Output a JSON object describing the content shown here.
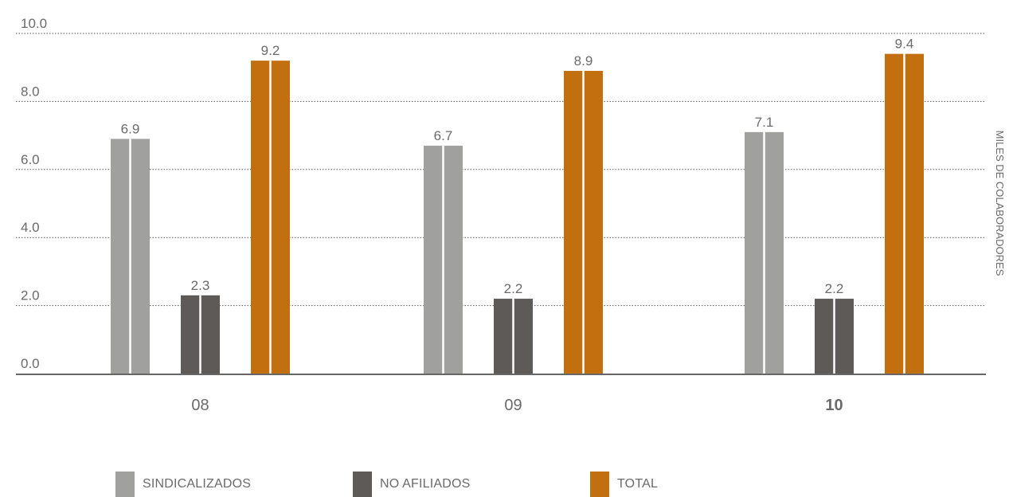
{
  "chart_data": {
    "type": "bar",
    "categories": [
      "08",
      "09",
      "10"
    ],
    "highlight_category": "10",
    "series": [
      {
        "name": "SINDICALIZADOS",
        "values": [
          6.9,
          6.7,
          7.1
        ],
        "color": "#a0a09e"
      },
      {
        "name": "NO AFILIADOS",
        "values": [
          2.3,
          2.2,
          2.2
        ],
        "color": "#5e5a58"
      },
      {
        "name": "TOTAL",
        "values": [
          9.2,
          8.9,
          9.4
        ],
        "color": "#c2700f"
      }
    ],
    "value_labels": [
      [
        "6.9",
        "6.7",
        "7.1"
      ],
      [
        "2.3",
        "2.2",
        "2.2"
      ],
      [
        "9.2",
        "8.9",
        "9.4"
      ]
    ],
    "y_ticks": [
      "0.0",
      "2.0",
      "4.0",
      "6.0",
      "8.0",
      "10.0"
    ],
    "ylabel": "MILES DE COLABORADORES",
    "ylim": [
      0,
      10
    ],
    "grid": true,
    "legend_position": "bottom",
    "highlight_color": "#c2700f",
    "text_color": "#6a6a6a",
    "axis_color": "#666666"
  }
}
